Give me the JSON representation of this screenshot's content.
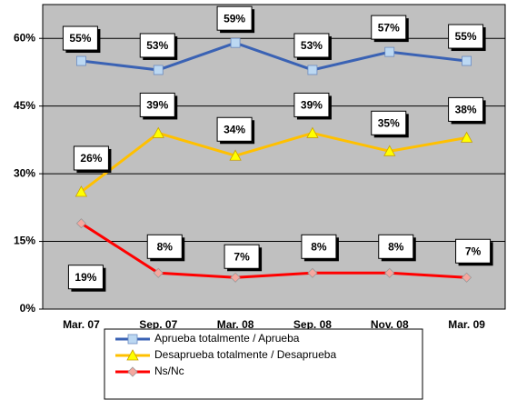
{
  "chart_data": {
    "type": "line",
    "categories": [
      "Mar. 07",
      "Sep. 07",
      "Mar. 08",
      "Sep. 08",
      "Nov. 08",
      "Mar. 09"
    ],
    "series": [
      {
        "name": "Aprueba totalmente / Aprueba",
        "color": "#3a62b4",
        "marker_color": "#bcd8f2",
        "marker": "square",
        "values": [
          55,
          53,
          59,
          53,
          57,
          55
        ],
        "value_labels": [
          "55%",
          "53%",
          "59%",
          "53%",
          "57%",
          "55%"
        ]
      },
      {
        "name": "Desaprueba totalmente / Desaprueba",
        "color": "#ffc000",
        "marker_color": "#ffff00",
        "marker": "triangle",
        "values": [
          26,
          39,
          34,
          39,
          35,
          38
        ],
        "value_labels": [
          "26%",
          "39%",
          "34%",
          "39%",
          "35%",
          "38%"
        ]
      },
      {
        "name": "Ns/Nc",
        "color": "#ff0000",
        "marker_color": "#f4a8a0",
        "marker": "diamond",
        "values": [
          19,
          8,
          7,
          8,
          8,
          7
        ],
        "value_labels": [
          "19%",
          "8%",
          "7%",
          "8%",
          "8%",
          "7%"
        ]
      }
    ],
    "ylim": [
      0,
      67.5
    ],
    "yticks": [
      {
        "value": 0,
        "label": "0%"
      },
      {
        "value": 15,
        "label": "15%"
      },
      {
        "value": 30,
        "label": "30%"
      },
      {
        "value": 45,
        "label": "45%"
      },
      {
        "value": 60,
        "label": "60%"
      }
    ],
    "grid": true
  }
}
